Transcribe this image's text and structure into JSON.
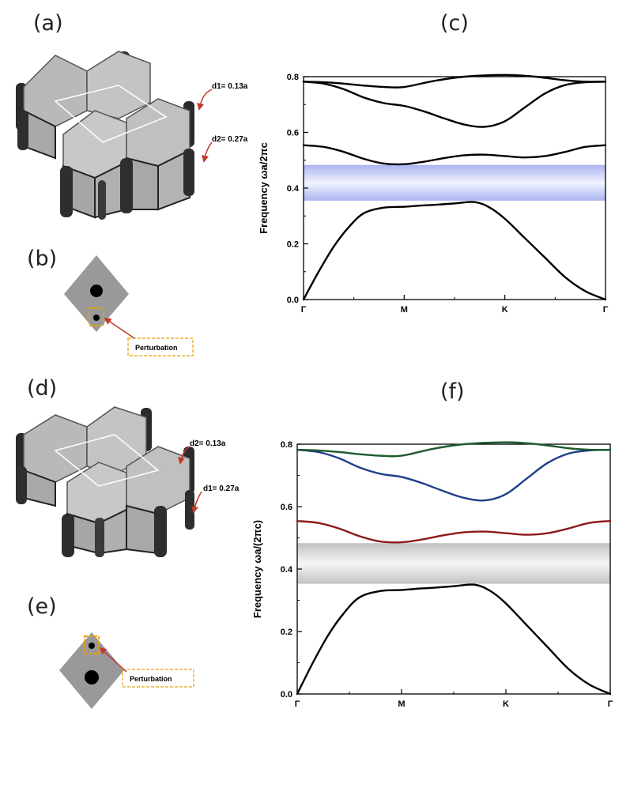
{
  "labels": {
    "a": "(a)",
    "b": "(b)",
    "c": "(c)",
    "d": "(d)",
    "e": "(e)",
    "f": "(f)"
  },
  "diagram_a": {
    "label_top": "d1= 0.13a",
    "label_bottom": "d2= 0.27a"
  },
  "diagram_b": {
    "callout": "Perturbation"
  },
  "diagram_d": {
    "label_top": "d2= 0.13a",
    "label_bottom": "d1= 0.27a"
  },
  "diagram_e": {
    "callout": "Perturbation"
  },
  "colors": {
    "gap_c": "#aab4f0",
    "gap_f": "#c4c4c4",
    "band1": "#000000",
    "band2_f": "#8b1a1a",
    "band3_f": "#1f3f8a",
    "band4_f": "#1e5a2e",
    "black": "#000000"
  },
  "chart_data": [
    {
      "type": "line",
      "panel": "c",
      "ylabel": "Frequency ωa/2πc",
      "xlabel": "",
      "categories": [
        "Γ",
        "M",
        "K",
        "Γ"
      ],
      "ylim": [
        0,
        0.8
      ],
      "yticks": [
        "0.0",
        "0.2",
        "0.4",
        "0.6",
        "0.8"
      ],
      "band_gap": [
        0.355,
        0.483
      ],
      "series": [
        {
          "x": [
            0,
            0.15,
            0.3,
            0.45,
            0.6,
            0.8,
            1.0,
            1.15,
            1.3,
            1.5,
            1.7,
            1.85,
            2.0,
            2.2,
            2.4,
            2.6,
            2.8,
            3.0
          ],
          "y": [
            0,
            0.1,
            0.19,
            0.26,
            0.31,
            0.33,
            0.333,
            0.337,
            0.34,
            0.345,
            0.35,
            0.33,
            0.29,
            0.22,
            0.15,
            0.08,
            0.03,
            0
          ]
        },
        {
          "x": [
            0,
            0.2,
            0.4,
            0.6,
            0.8,
            1.0,
            1.2,
            1.4,
            1.6,
            1.8,
            2.0,
            2.2,
            2.4,
            2.6,
            2.8,
            3.0
          ],
          "y": [
            0.554,
            0.548,
            0.53,
            0.505,
            0.488,
            0.486,
            0.495,
            0.508,
            0.518,
            0.52,
            0.515,
            0.51,
            0.515,
            0.53,
            0.548,
            0.554
          ]
        },
        {
          "x": [
            0,
            0.2,
            0.4,
            0.6,
            0.8,
            1.0,
            1.2,
            1.4,
            1.6,
            1.8,
            2.0,
            2.2,
            2.4,
            2.6,
            2.8,
            3.0
          ],
          "y": [
            0.782,
            0.775,
            0.755,
            0.725,
            0.705,
            0.695,
            0.675,
            0.65,
            0.628,
            0.62,
            0.64,
            0.69,
            0.74,
            0.77,
            0.78,
            0.782
          ]
        },
        {
          "x": [
            0,
            0.2,
            0.4,
            0.6,
            0.8,
            1.0,
            1.3,
            1.6,
            2.0,
            2.3,
            2.6,
            2.8,
            3.0
          ],
          "y": [
            0.782,
            0.78,
            0.775,
            0.768,
            0.763,
            0.763,
            0.785,
            0.8,
            0.806,
            0.8,
            0.787,
            0.782,
            0.782
          ]
        }
      ]
    },
    {
      "type": "line",
      "panel": "f",
      "ylabel": "Frequency ωa/(2πc)",
      "xlabel": "",
      "categories": [
        "Γ",
        "M",
        "K",
        "Γ"
      ],
      "ylim": [
        0,
        0.8
      ],
      "yticks": [
        "0.0",
        "0.2",
        "0.4",
        "0.6",
        "0.8"
      ],
      "band_gap": [
        0.353,
        0.483
      ],
      "series": [
        {
          "x": [
            0,
            0.15,
            0.3,
            0.45,
            0.6,
            0.8,
            1.0,
            1.15,
            1.3,
            1.5,
            1.7,
            1.85,
            2.0,
            2.2,
            2.4,
            2.6,
            2.8,
            3.0
          ],
          "y": [
            0,
            0.1,
            0.19,
            0.26,
            0.31,
            0.33,
            0.333,
            0.337,
            0.34,
            0.345,
            0.35,
            0.33,
            0.29,
            0.22,
            0.15,
            0.08,
            0.03,
            0
          ]
        },
        {
          "x": [
            0,
            0.2,
            0.4,
            0.6,
            0.8,
            1.0,
            1.2,
            1.4,
            1.6,
            1.8,
            2.0,
            2.2,
            2.4,
            2.6,
            2.8,
            3.0
          ],
          "y": [
            0.554,
            0.548,
            0.53,
            0.505,
            0.488,
            0.486,
            0.495,
            0.508,
            0.518,
            0.52,
            0.515,
            0.51,
            0.515,
            0.53,
            0.548,
            0.554
          ]
        },
        {
          "x": [
            0,
            0.2,
            0.4,
            0.6,
            0.8,
            1.0,
            1.2,
            1.4,
            1.6,
            1.8,
            2.0,
            2.2,
            2.4,
            2.6,
            2.8,
            3.0
          ],
          "y": [
            0.782,
            0.775,
            0.755,
            0.725,
            0.705,
            0.695,
            0.675,
            0.65,
            0.628,
            0.62,
            0.64,
            0.69,
            0.74,
            0.77,
            0.78,
            0.782
          ]
        },
        {
          "x": [
            0,
            0.2,
            0.4,
            0.6,
            0.8,
            1.0,
            1.3,
            1.6,
            2.0,
            2.3,
            2.6,
            2.8,
            3.0
          ],
          "y": [
            0.782,
            0.78,
            0.775,
            0.768,
            0.763,
            0.763,
            0.785,
            0.8,
            0.806,
            0.8,
            0.787,
            0.782,
            0.782
          ]
        }
      ]
    }
  ]
}
